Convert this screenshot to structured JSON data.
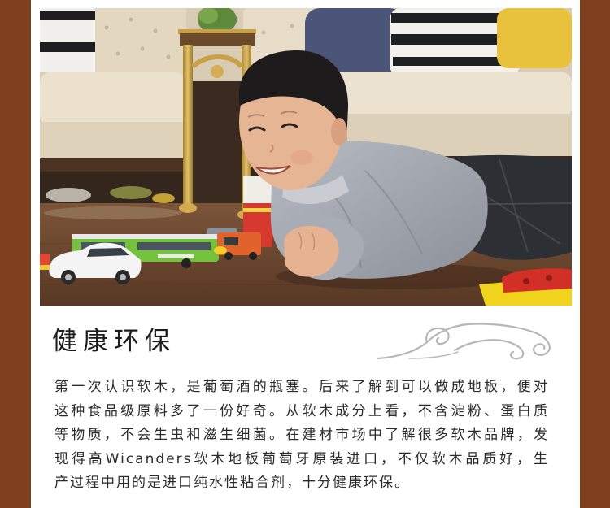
{
  "page": {
    "border_color": "#7e3f1f",
    "content_background": "#ffffff",
    "heading_color": "#1c1c1c",
    "text_color": "#2b2b2b",
    "ornament_color": "#b7b7b7"
  },
  "section": {
    "heading": "健康环保",
    "ornament_icon": "swirl-ornament-icon",
    "paragraph_lines": [
      "第一次认识软木，是葡萄酒的瓶塞。后来了解到可以做成地板，便对",
      "这种食品级原料多了一份好奇。从软木成分上看，不含淀粉、蛋白质",
      "等物质，不会生虫和滋生细菌。在建材市场中了解很多软木品牌，发",
      "现得高Wicanders软木地板葡萄牙原装进口，不仅软木品质好，生",
      "产过程中用的是进口纯水性粘合剂，十分健康环保。"
    ]
  }
}
